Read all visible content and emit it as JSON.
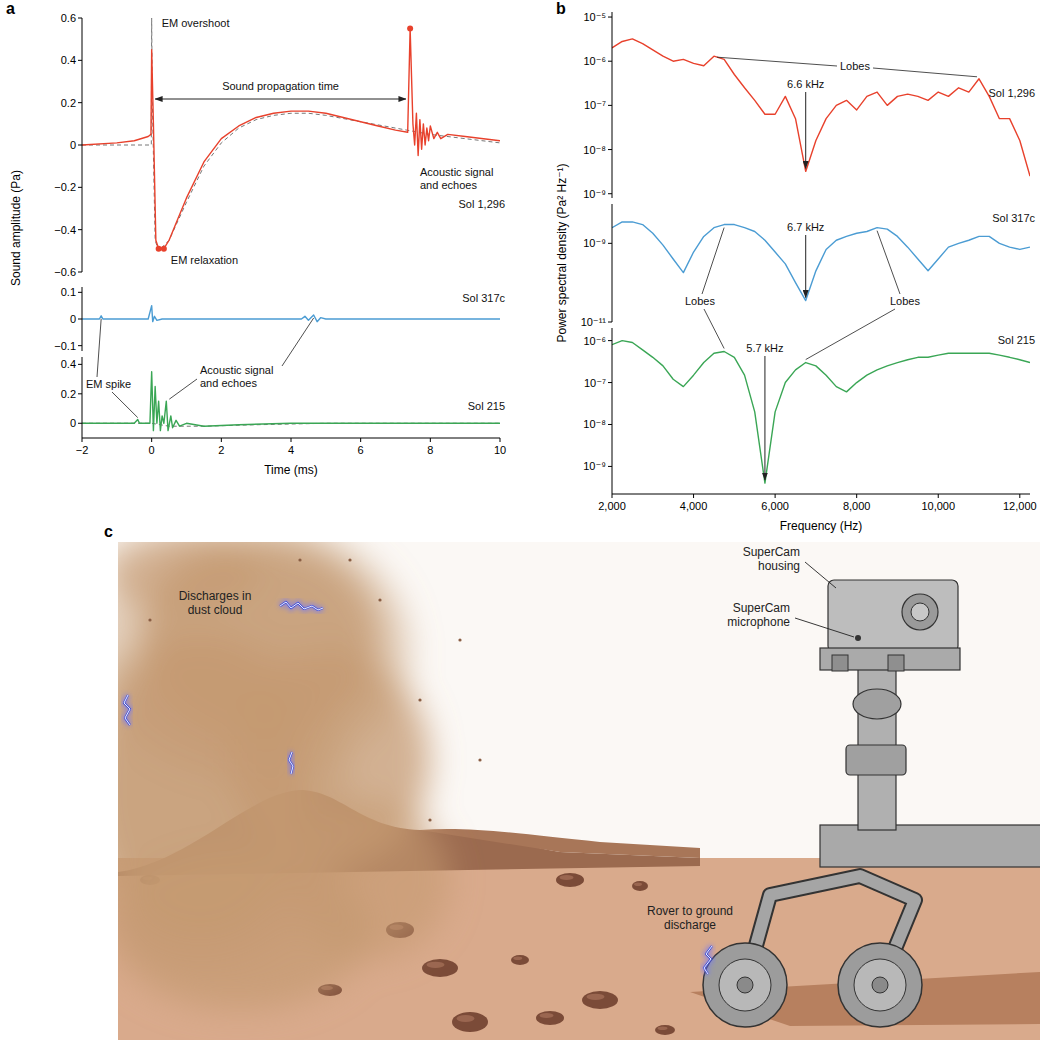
{
  "chart_data": [
    {
      "type": "line",
      "panel_label": "a",
      "title": "Sol 1,296",
      "y_label": "Sound amplitude (Pa)",
      "tick_labels": "y",
      "xlim": [
        -2,
        10
      ],
      "ylim": [
        -0.6,
        0.6
      ],
      "yticks": [
        {
          "value": -0.6,
          "label": "−0.6"
        },
        {
          "value": -0.4,
          "label": "−0.4"
        },
        {
          "value": -0.2,
          "label": "−0.2"
        },
        0,
        0.2,
        0.4,
        0.6
      ],
      "annotations": [
        "EM overshoot",
        "Sound propagation time",
        "Acoustic signal and echoes",
        "EM relaxation"
      ],
      "series": [
        {
          "color": "#777777",
          "line_style": "dashed",
          "x": [
            -2,
            -0.01,
            0,
            0.02,
            0.1,
            0.2,
            0.5,
            1,
            1.5,
            2,
            2.5,
            3,
            3.5,
            4,
            4.5,
            5,
            6,
            7,
            8,
            9,
            10
          ],
          "values": [
            0,
            0,
            0.6,
            0.2,
            -0.45,
            -0.5,
            -0.45,
            -0.27,
            -0.1,
            0.01,
            0.08,
            0.12,
            0.14,
            0.15,
            0.15,
            0.14,
            0.11,
            0.08,
            0.05,
            0.03,
            0.01
          ]
        },
        {
          "color": "#e8412c",
          "line_style": "solid",
          "x": [
            -2,
            -1,
            -0.5,
            -0.1,
            -0.02,
            0,
            0.05,
            0.12,
            0.2,
            0.35,
            0.5,
            0.75,
            1,
            1.5,
            2,
            2.5,
            3,
            3.5,
            4,
            4.5,
            5,
            5.5,
            6,
            6.5,
            7,
            7.35,
            7.42,
            7.5,
            7.55,
            7.6,
            7.65,
            7.7,
            7.75,
            7.8,
            7.85,
            7.9,
            7.95,
            8,
            8.1,
            8.2,
            8.3,
            8.5,
            9,
            10
          ],
          "values": [
            0,
            0.01,
            0.02,
            0.04,
            0.05,
            0.45,
            0.1,
            -0.45,
            -0.49,
            -0.49,
            -0.45,
            -0.35,
            -0.25,
            -0.08,
            0.03,
            0.09,
            0.13,
            0.15,
            0.16,
            0.16,
            0.15,
            0.13,
            0.11,
            0.09,
            0.07,
            0.06,
            0.55,
            0.1,
            0,
            0.15,
            -0.05,
            0.12,
            -0.02,
            0.1,
            0,
            0.08,
            0.02,
            0.09,
            0.03,
            0.06,
            0.03,
            0.05,
            0.04,
            0.02
          ]
        },
        {
          "type": "scatter",
          "marker": "circle",
          "color": "#e8412c",
          "x": [
            0.2,
            0.35,
            7.42
          ],
          "values": [
            -0.49,
            -0.49,
            0.55
          ]
        }
      ]
    },
    {
      "type": "line",
      "title": "Sol 317c",
      "tick_labels": "y",
      "xlim": [
        -2,
        10
      ],
      "ylim": [
        -0.12,
        0.12
      ],
      "yticks": [
        {
          "value": -0.1,
          "label": "−0.1"
        },
        0,
        0.1
      ],
      "annotations": [
        "EM spike",
        "Acoustic signal and echoes"
      ],
      "series": [
        {
          "color": "#4b9cd3",
          "line_style": "solid",
          "x": [
            -2,
            -1.5,
            -1.45,
            -1.4,
            -0.1,
            0,
            0.03,
            0.08,
            0.15,
            0.3,
            4.3,
            4.4,
            4.5,
            4.65,
            4.75,
            4.85,
            5,
            10
          ],
          "values": [
            0,
            0,
            0.012,
            0,
            0,
            0.05,
            -0.01,
            0.01,
            -0.005,
            0,
            0,
            0.01,
            -0.005,
            0.015,
            -0.01,
            0.005,
            0,
            0
          ]
        }
      ]
    },
    {
      "type": "line",
      "title": "Sol 215",
      "x_label": "Time (ms)",
      "xlim": [
        -2,
        10
      ],
      "ylim": [
        -0.1,
        0.45
      ],
      "xticks": [
        {
          "value": -2,
          "label": "−2"
        },
        0,
        2,
        4,
        6,
        8,
        10
      ],
      "yticks": [
        0,
        0.2,
        0.4
      ],
      "series": [
        {
          "color": "#777777",
          "line_style": "dashed",
          "x": [
            -2,
            0,
            0.5,
            1.5,
            3,
            5,
            10
          ],
          "values": [
            0,
            0,
            -0.02,
            -0.02,
            -0.01,
            0,
            0
          ]
        },
        {
          "color": "#3aa655",
          "line_style": "solid",
          "x": [
            -2,
            -0.5,
            -0.4,
            -0.35,
            -0.05,
            0,
            0.05,
            0.1,
            0.15,
            0.2,
            0.25,
            0.3,
            0.35,
            0.42,
            0.47,
            0.55,
            0.6,
            0.7,
            0.8,
            1,
            1.5,
            2.5,
            4,
            10
          ],
          "values": [
            0,
            0,
            0.025,
            0,
            0,
            0.35,
            -0.05,
            0.25,
            0,
            0.15,
            -0.05,
            0.05,
            0,
            0.15,
            -0.05,
            0.05,
            -0.03,
            0.02,
            -0.02,
            0,
            -0.02,
            -0.01,
            0,
            0
          ]
        }
      ]
    },
    {
      "type": "line",
      "panel_label": "b",
      "title": "Sol 1,296",
      "y_label": "Power spectral density (Pa² Hz⁻¹)",
      "log": "y",
      "tick_labels": "y",
      "xlim": [
        2000,
        12250
      ],
      "ylim": [
        8e-10,
        1.3e-05
      ],
      "yticks": [
        {
          "value": 1e-09,
          "label": "10⁻⁹"
        },
        {
          "value": 1e-08,
          "label": "10⁻⁸"
        },
        {
          "value": 1e-07,
          "label": "10⁻⁷"
        },
        {
          "value": 1e-06,
          "label": "10⁻⁶"
        },
        {
          "value": 1e-05,
          "label": "10⁻⁵"
        }
      ],
      "annotations": [
        "Lobes",
        "6.6 kHz"
      ],
      "x": [
        2000,
        2250,
        2500,
        2750,
        3000,
        3250,
        3500,
        3750,
        4000,
        4250,
        4500,
        4750,
        5000,
        5250,
        5500,
        5750,
        6000,
        6250,
        6500,
        6750,
        7000,
        7250,
        7500,
        7750,
        8000,
        8250,
        8500,
        8750,
        9000,
        9250,
        9500,
        9750,
        10000,
        10250,
        10500,
        10750,
        11000,
        11250,
        11500,
        11750,
        12000,
        12250
      ],
      "series": [
        {
          "color": "#e8412c",
          "line_style": "solid",
          "values": [
            2e-06,
            2.8e-06,
            3.2e-06,
            2.5e-06,
            1.8e-06,
            1.3e-06,
            1e-06,
            1.1e-06,
            8.9e-07,
            7.9e-07,
            1.3e-06,
            1.1e-06,
            5e-07,
            2.5e-07,
            1.3e-07,
            6.3e-08,
            6.3e-08,
            1.6e-07,
            5e-08,
            3.2e-09,
            1.6e-08,
            5e-08,
            1e-07,
            1.3e-07,
            7.9e-08,
            1.6e-07,
            2e-07,
            1e-07,
            1.6e-07,
            1.8e-07,
            1.6e-07,
            1.3e-07,
            2e-07,
            1.6e-07,
            2.5e-07,
            2e-07,
            4e-07,
            1.6e-07,
            5e-08,
            5e-08,
            1.6e-08,
            2.5e-09
          ]
        }
      ]
    },
    {
      "type": "line",
      "title": "Sol 317c",
      "log": "y",
      "tick_labels": "y",
      "xlim": [
        2000,
        12250
      ],
      "ylim": [
        1e-11,
        1e-08
      ],
      "yticks": [
        {
          "value": 1e-11,
          "label": "10⁻¹¹"
        },
        {
          "value": 1e-09,
          "label": "10⁻⁹"
        }
      ],
      "annotations": [
        "6.7 kHz",
        "Lobes",
        "Lobes"
      ],
      "x": [
        2000,
        2250,
        2500,
        2750,
        3000,
        3250,
        3500,
        3750,
        4000,
        4250,
        4500,
        4750,
        5000,
        5250,
        5500,
        5750,
        6000,
        6250,
        6500,
        6750,
        7000,
        7250,
        7500,
        7750,
        8000,
        8250,
        8500,
        8750,
        9000,
        9250,
        9500,
        9750,
        10000,
        10250,
        10500,
        10750,
        11000,
        11250,
        11500,
        11750,
        12000,
        12250
      ],
      "series": [
        {
          "color": "#4b9cd3",
          "line_style": "solid",
          "values": [
            2.5e-09,
            3.5e-09,
            3.5e-09,
            3e-09,
            1.8e-09,
            9e-10,
            4e-10,
            1.8e-10,
            6e-10,
            1.5e-09,
            2.5e-09,
            3e-09,
            3e-09,
            2.5e-09,
            2e-09,
            1.2e-09,
            6e-10,
            3e-10,
            1e-10,
            3.5e-11,
            2e-10,
            7e-10,
            1.2e-09,
            1.5e-09,
            1.8e-09,
            2e-09,
            2.5e-09,
            2.3e-09,
            1.5e-09,
            8e-10,
            4e-10,
            2e-10,
            4e-10,
            8e-10,
            1e-09,
            1.2e-09,
            1.5e-09,
            1.5e-09,
            1e-09,
            8e-10,
            7e-10,
            8e-10
          ]
        }
      ]
    },
    {
      "type": "line",
      "title": "Sol 215",
      "log": "y",
      "x_label": "Frequency (Hz)",
      "xlim": [
        2000,
        12250
      ],
      "ylim": [
        2.2e-10,
        2e-06
      ],
      "xticks": [
        {
          "value": 2000,
          "label": "2,000"
        },
        {
          "value": 4000,
          "label": "4,000"
        },
        {
          "value": 6000,
          "label": "6,000"
        },
        {
          "value": 8000,
          "label": "8,000"
        },
        {
          "value": 10000,
          "label": "10,000"
        },
        {
          "value": 12000,
          "label": "12,000"
        }
      ],
      "yticks": [
        {
          "value": 1e-09,
          "label": "10⁻⁹"
        },
        {
          "value": 1e-08,
          "label": "10⁻⁸"
        },
        {
          "value": 1e-07,
          "label": "10⁻⁷"
        },
        {
          "value": 1e-06,
          "label": "10⁻⁶"
        }
      ],
      "annotations": [
        "5.7 kHz"
      ],
      "x": [
        2000,
        2250,
        2500,
        2750,
        3000,
        3250,
        3500,
        3750,
        4000,
        4250,
        4500,
        4750,
        5000,
        5250,
        5500,
        5750,
        6000,
        6250,
        6500,
        6750,
        7000,
        7250,
        7500,
        7750,
        8000,
        8250,
        8500,
        8750,
        9000,
        9250,
        9500,
        9750,
        10000,
        10250,
        10500,
        10750,
        11000,
        11250,
        11500,
        11750,
        12000,
        12250
      ],
      "series": [
        {
          "color": "#3aa655",
          "line_style": "solid",
          "values": [
            8e-07,
            1e-06,
            9e-07,
            6e-07,
            4e-07,
            2.5e-07,
            1.2e-07,
            8e-08,
            1.5e-07,
            3e-07,
            5e-07,
            5.5e-07,
            4e-07,
            1.5e-07,
            2e-08,
            4e-10,
            2e-08,
            1e-07,
            2e-07,
            3e-07,
            2.5e-07,
            1.5e-07,
            8e-08,
            6e-08,
            1e-07,
            1.5e-07,
            2e-07,
            2.5e-07,
            3e-07,
            3.5e-07,
            4e-07,
            4e-07,
            4.5e-07,
            5e-07,
            5e-07,
            5e-07,
            5e-07,
            5e-07,
            4.5e-07,
            4e-07,
            3.5e-07,
            3e-07
          ]
        }
      ]
    }
  ],
  "illustration": {
    "panel_label": "c",
    "labels": [
      "Discharges in dust cloud",
      "SuperCam housing",
      "SuperCam microphone",
      "Rover to ground discharge"
    ]
  }
}
